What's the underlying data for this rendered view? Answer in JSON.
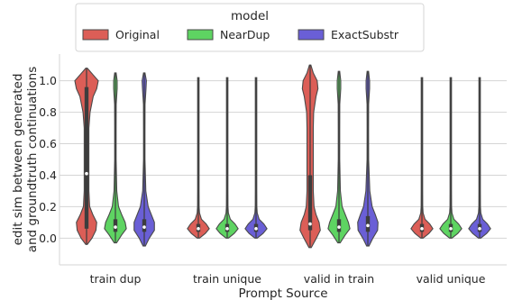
{
  "chart_data": {
    "type": "violin",
    "xlabel": "Prompt Source",
    "ylabel": [
      "edit sim between generated",
      "and groundtruth continuations"
    ],
    "ylim": [
      -0.17,
      1.17
    ],
    "yticks": [
      0.0,
      0.2,
      0.4,
      0.6,
      0.8,
      1.0
    ],
    "ytick_labels": [
      "0.0",
      "0.2",
      "0.4",
      "0.6",
      "0.8",
      "1.0"
    ],
    "grid": true,
    "legend": {
      "title": "model",
      "position": "top-center",
      "entries": [
        {
          "name": "Original",
          "color": "#dc5e57"
        },
        {
          "name": "NearDup",
          "color": "#5ed462"
        },
        {
          "name": "ExactSubstr",
          "color": "#6a5fd6"
        }
      ]
    },
    "categories": [
      "train dup",
      "train unique",
      "valid in train",
      "valid unique"
    ],
    "series": [
      {
        "name": "Original",
        "color": "#dc5e57",
        "violins": [
          {
            "category": "train dup",
            "min": -0.04,
            "q1": 0.06,
            "median": 0.41,
            "q3": 0.96,
            "max": 1.08,
            "density": [
              [
                -0.04,
                0.2
              ],
              [
                0.0,
                1.4
              ],
              [
                0.05,
                2.4
              ],
              [
                0.1,
                2.6
              ],
              [
                0.15,
                1.6
              ],
              [
                0.2,
                0.8
              ],
              [
                0.3,
                0.6
              ],
              [
                0.4,
                0.6
              ],
              [
                0.5,
                0.6
              ],
              [
                0.6,
                0.6
              ],
              [
                0.7,
                0.6
              ],
              [
                0.8,
                0.9
              ],
              [
                0.9,
                1.7
              ],
              [
                0.95,
                2.6
              ],
              [
                1.0,
                3.0
              ],
              [
                1.04,
                1.6
              ],
              [
                1.08,
                0.2
              ]
            ]
          },
          {
            "category": "train unique",
            "min": 0.0,
            "q1": 0.04,
            "median": 0.06,
            "q3": 0.09,
            "max": 1.02,
            "density": [
              [
                0.0,
                0.3
              ],
              [
                0.03,
                1.8
              ],
              [
                0.06,
                2.8
              ],
              [
                0.09,
                2.0
              ],
              [
                0.12,
                0.8
              ],
              [
                0.16,
                0.3
              ],
              [
                0.2,
                0.2
              ],
              [
                0.3,
                0.15
              ],
              [
                0.5,
                0.1
              ],
              [
                0.8,
                0.1
              ],
              [
                1.0,
                0.1
              ],
              [
                1.02,
                0.05
              ]
            ]
          },
          {
            "category": "valid in train",
            "min": -0.06,
            "q1": 0.05,
            "median": 0.09,
            "q3": 0.4,
            "max": 1.1,
            "density": [
              [
                -0.06,
                0.3
              ],
              [
                0.0,
                1.6
              ],
              [
                0.05,
                2.6
              ],
              [
                0.1,
                2.3
              ],
              [
                0.15,
                1.5
              ],
              [
                0.2,
                1.0
              ],
              [
                0.3,
                0.8
              ],
              [
                0.4,
                0.8
              ],
              [
                0.5,
                0.8
              ],
              [
                0.6,
                0.8
              ],
              [
                0.7,
                0.8
              ],
              [
                0.8,
                0.9
              ],
              [
                0.9,
                1.5
              ],
              [
                0.95,
                2.0
              ],
              [
                1.0,
                1.8
              ],
              [
                1.05,
                0.8
              ],
              [
                1.1,
                0.15
              ]
            ]
          },
          {
            "category": "valid unique",
            "min": 0.0,
            "q1": 0.04,
            "median": 0.06,
            "q3": 0.09,
            "max": 1.02,
            "density": [
              [
                0.0,
                0.3
              ],
              [
                0.03,
                1.8
              ],
              [
                0.06,
                2.8
              ],
              [
                0.09,
                2.0
              ],
              [
                0.12,
                0.8
              ],
              [
                0.16,
                0.3
              ],
              [
                0.2,
                0.2
              ],
              [
                0.3,
                0.15
              ],
              [
                0.5,
                0.1
              ],
              [
                0.8,
                0.1
              ],
              [
                1.0,
                0.1
              ],
              [
                1.02,
                0.05
              ]
            ]
          }
        ]
      },
      {
        "name": "NearDup",
        "color": "#5ed462",
        "violins": [
          {
            "category": "train dup",
            "min": -0.03,
            "q1": 0.04,
            "median": 0.07,
            "q3": 0.12,
            "max": 1.05,
            "density": [
              [
                -0.03,
                0.3
              ],
              [
                0.02,
                1.6
              ],
              [
                0.06,
                2.8
              ],
              [
                0.1,
                2.5
              ],
              [
                0.15,
                1.6
              ],
              [
                0.2,
                0.8
              ],
              [
                0.3,
                0.35
              ],
              [
                0.5,
                0.15
              ],
              [
                0.7,
                0.15
              ],
              [
                0.85,
                0.2
              ],
              [
                0.95,
                0.45
              ],
              [
                1.0,
                0.45
              ],
              [
                1.05,
                0.05
              ]
            ]
          },
          {
            "category": "train unique",
            "min": 0.0,
            "q1": 0.04,
            "median": 0.06,
            "q3": 0.09,
            "max": 1.02,
            "density": [
              [
                0.0,
                0.3
              ],
              [
                0.03,
                1.8
              ],
              [
                0.06,
                2.8
              ],
              [
                0.09,
                2.0
              ],
              [
                0.12,
                0.8
              ],
              [
                0.16,
                0.3
              ],
              [
                0.2,
                0.2
              ],
              [
                0.3,
                0.15
              ],
              [
                0.5,
                0.1
              ],
              [
                0.8,
                0.1
              ],
              [
                1.0,
                0.1
              ],
              [
                1.02,
                0.05
              ]
            ]
          },
          {
            "category": "valid in train",
            "min": -0.03,
            "q1": 0.04,
            "median": 0.07,
            "q3": 0.12,
            "max": 1.06,
            "density": [
              [
                -0.03,
                0.3
              ],
              [
                0.02,
                1.6
              ],
              [
                0.06,
                2.8
              ],
              [
                0.1,
                2.4
              ],
              [
                0.15,
                1.6
              ],
              [
                0.2,
                0.8
              ],
              [
                0.3,
                0.35
              ],
              [
                0.5,
                0.15
              ],
              [
                0.7,
                0.15
              ],
              [
                0.85,
                0.2
              ],
              [
                0.95,
                0.45
              ],
              [
                1.0,
                0.45
              ],
              [
                1.06,
                0.05
              ]
            ]
          },
          {
            "category": "valid unique",
            "min": 0.0,
            "q1": 0.04,
            "median": 0.06,
            "q3": 0.09,
            "max": 1.02,
            "density": [
              [
                0.0,
                0.3
              ],
              [
                0.03,
                1.8
              ],
              [
                0.06,
                2.8
              ],
              [
                0.09,
                2.0
              ],
              [
                0.12,
                0.8
              ],
              [
                0.16,
                0.3
              ],
              [
                0.2,
                0.2
              ],
              [
                0.3,
                0.15
              ],
              [
                0.5,
                0.1
              ],
              [
                0.8,
                0.1
              ],
              [
                1.0,
                0.1
              ],
              [
                1.02,
                0.05
              ]
            ]
          }
        ]
      },
      {
        "name": "ExactSubstr",
        "color": "#6a5fd6",
        "violins": [
          {
            "category": "train dup",
            "min": -0.05,
            "q1": 0.04,
            "median": 0.07,
            "q3": 0.12,
            "max": 1.05,
            "density": [
              [
                -0.05,
                0.3
              ],
              [
                0.0,
                1.3
              ],
              [
                0.05,
                2.6
              ],
              [
                0.1,
                2.6
              ],
              [
                0.15,
                1.8
              ],
              [
                0.2,
                1.0
              ],
              [
                0.3,
                0.4
              ],
              [
                0.5,
                0.15
              ],
              [
                0.7,
                0.15
              ],
              [
                0.85,
                0.2
              ],
              [
                0.95,
                0.45
              ],
              [
                1.0,
                0.55
              ],
              [
                1.05,
                0.05
              ]
            ]
          },
          {
            "category": "train unique",
            "min": 0.0,
            "q1": 0.04,
            "median": 0.06,
            "q3": 0.09,
            "max": 1.02,
            "density": [
              [
                0.0,
                0.3
              ],
              [
                0.03,
                1.8
              ],
              [
                0.06,
                2.8
              ],
              [
                0.09,
                2.0
              ],
              [
                0.12,
                0.8
              ],
              [
                0.16,
                0.3
              ],
              [
                0.2,
                0.2
              ],
              [
                0.3,
                0.15
              ],
              [
                0.5,
                0.1
              ],
              [
                0.8,
                0.1
              ],
              [
                1.0,
                0.1
              ],
              [
                1.02,
                0.05
              ]
            ]
          },
          {
            "category": "valid in train",
            "min": -0.05,
            "q1": 0.04,
            "median": 0.08,
            "q3": 0.14,
            "max": 1.06,
            "density": [
              [
                -0.05,
                0.3
              ],
              [
                0.0,
                1.3
              ],
              [
                0.05,
                2.5
              ],
              [
                0.1,
                2.6
              ],
              [
                0.15,
                1.9
              ],
              [
                0.2,
                1.1
              ],
              [
                0.3,
                0.5
              ],
              [
                0.5,
                0.2
              ],
              [
                0.7,
                0.15
              ],
              [
                0.85,
                0.2
              ],
              [
                0.95,
                0.45
              ],
              [
                1.0,
                0.45
              ],
              [
                1.06,
                0.05
              ]
            ]
          },
          {
            "category": "valid unique",
            "min": 0.0,
            "q1": 0.04,
            "median": 0.06,
            "q3": 0.09,
            "max": 1.02,
            "density": [
              [
                0.0,
                0.3
              ],
              [
                0.03,
                1.8
              ],
              [
                0.06,
                2.8
              ],
              [
                0.09,
                2.0
              ],
              [
                0.12,
                0.8
              ],
              [
                0.16,
                0.3
              ],
              [
                0.2,
                0.2
              ],
              [
                0.3,
                0.15
              ],
              [
                0.5,
                0.1
              ],
              [
                0.8,
                0.1
              ],
              [
                1.0,
                0.1
              ],
              [
                1.02,
                0.05
              ]
            ]
          }
        ]
      }
    ]
  }
}
